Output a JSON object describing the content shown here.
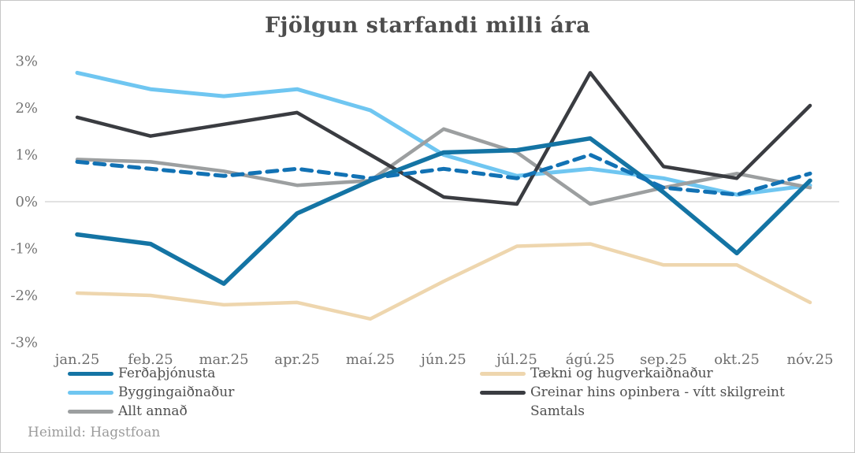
{
  "window": {
    "background": "#ffffff",
    "border_color": "#c6c6c6"
  },
  "chart_data": {
    "type": "line",
    "title": "Fjölgun starfandi milli ára",
    "x_categories": [
      "jan.25",
      "feb.25",
      "mar.25",
      "apr.25",
      "maí.25",
      "jún.25",
      "júl.25",
      "ágú.25",
      "sep.25",
      "okt.25",
      "nóv.25"
    ],
    "y_tick_labels": [
      "3%",
      "2%",
      "1%",
      "0%",
      "-1%",
      "-2%",
      "-3%"
    ],
    "y_tick_values": [
      3,
      2,
      1,
      0,
      -1,
      -2,
      -3
    ],
    "ylim": [
      -3,
      3
    ],
    "grid": "zero-baseline-only",
    "zero_line_color": "#d9d9d9",
    "legend_position": "bottom-two-columns",
    "series": [
      {
        "name": "Ferðaþjónusta",
        "color": "#1474a4",
        "dash": false,
        "width": 5.5,
        "values": [
          -0.7,
          -0.9,
          -1.75,
          -0.25,
          0.45,
          1.05,
          1.1,
          1.35,
          0.2,
          -1.1,
          0.45
        ]
      },
      {
        "name": "Byggingaiðnaður",
        "color": "#6fc6f1",
        "dash": false,
        "width": 5,
        "values": [
          2.75,
          2.4,
          2.25,
          2.4,
          1.95,
          1.0,
          0.55,
          0.7,
          0.5,
          0.15,
          0.35
        ]
      },
      {
        "name": "Allt annað",
        "color": "#9c9fa0",
        "dash": false,
        "width": 4.5,
        "values": [
          0.9,
          0.85,
          0.65,
          0.35,
          0.45,
          1.55,
          1.05,
          -0.05,
          0.3,
          0.6,
          0.3
        ]
      },
      {
        "name": "Tækni og hugverkaiðnaður",
        "color": "#eed6ae",
        "dash": false,
        "width": 4.5,
        "values": [
          -1.95,
          -2.0,
          -2.2,
          -2.15,
          -2.5,
          -1.7,
          -0.95,
          -0.9,
          -1.35,
          -1.35,
          -2.15
        ]
      },
      {
        "name": "Greinar hins opinbera - vítt skilgreint",
        "color": "#3a3c41",
        "dash": false,
        "width": 4.5,
        "values": [
          1.8,
          1.4,
          1.65,
          1.9,
          1.0,
          0.1,
          -0.05,
          2.75,
          0.75,
          0.5,
          2.05
        ]
      },
      {
        "name": "Samtals",
        "color": "#1272b4",
        "dash": true,
        "width": 5,
        "values": [
          0.85,
          0.7,
          0.55,
          0.7,
          0.5,
          0.7,
          0.5,
          1.0,
          0.3,
          0.15,
          0.6
        ]
      }
    ],
    "legend_columns": [
      [
        0,
        1,
        2
      ],
      [
        3,
        4,
        5
      ]
    ],
    "source": "Heimild: Hagstfoan"
  }
}
